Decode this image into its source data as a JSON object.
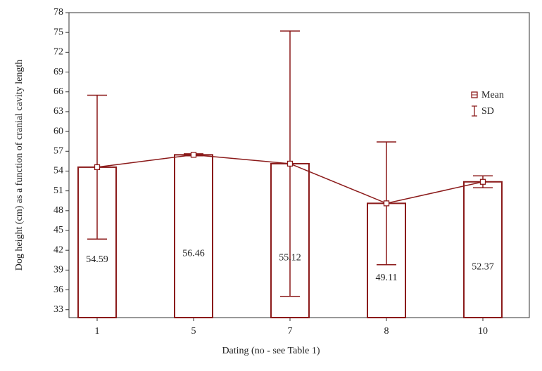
{
  "chart_data": {
    "type": "bar",
    "x_label": "Dating (no - see Table 1)",
    "y_label": "Dog height (cm) as a function of cranial cavity length",
    "categories": [
      "1",
      "5",
      "7",
      "8",
      "10"
    ],
    "series": [
      {
        "name": "Mean",
        "color": "#8b1a1a",
        "values": [
          54.59,
          56.46,
          55.12,
          49.11,
          52.37
        ]
      }
    ],
    "error_bars": {
      "name": "SD",
      "color": "#8b1a1a",
      "values": [
        10.9,
        0.15,
        20.1,
        9.3,
        0.9
      ]
    },
    "ylim": [
      31.8,
      78
    ],
    "yticks": [
      33,
      36,
      39,
      42,
      45,
      48,
      51,
      54,
      57,
      60,
      63,
      66,
      69,
      72,
      75,
      78
    ],
    "legend": "right"
  }
}
